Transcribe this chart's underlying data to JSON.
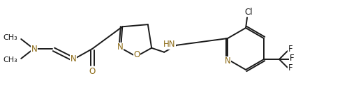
{
  "bg_color": "#ffffff",
  "bond_color": "#1a1a1a",
  "text_color": "#1a1a1a",
  "heteroatom_color": "#8B6914",
  "line_width": 1.4,
  "figsize": [
    5.0,
    1.52
  ],
  "dpi": 100,
  "xlim": [
    0,
    500
  ],
  "ylim": [
    0,
    152
  ]
}
